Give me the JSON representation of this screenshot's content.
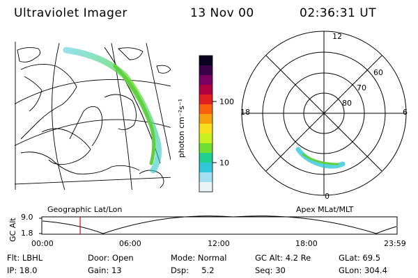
{
  "header": {
    "instrument": "Ultraviolet Imager",
    "date": "13 Nov 00",
    "time": "02:36:31 UT"
  },
  "geo_panel": {
    "caption": "Geographic Lat/Lon"
  },
  "polar_panel": {
    "caption": "Apex MLat/MLT",
    "mlt_labels": {
      "top": "12",
      "left": "18",
      "right": "6",
      "bottom": "0"
    },
    "lat_labels": [
      "60",
      "70",
      "80"
    ]
  },
  "colorbar": {
    "unit_label": "photon cm⁻²s⁻¹",
    "ticks": [
      "100",
      "10"
    ],
    "colors": [
      "#0a0020",
      "#3a0048",
      "#7a0060",
      "#b00040",
      "#e02020",
      "#f86010",
      "#f8a010",
      "#f8e020",
      "#c8f020",
      "#70e030",
      "#20d090",
      "#30c8d8",
      "#a0e0f0",
      "#e8f4f8"
    ]
  },
  "alt_plot": {
    "ylabel": "GC Alt",
    "ymax": "9.0",
    "ymin": "1.8",
    "x_ticks": [
      "00:00",
      "06:00",
      "12:00",
      "18:00",
      "23:59"
    ],
    "current_time_fraction": 0.108
  },
  "status": {
    "filter": "Flt: LBHL",
    "door": "Door: Open",
    "mode": "Mode: Normal",
    "gc_alt": "GC Alt: 4.2 Re",
    "glat": "GLat:  69.5",
    "ip": "IP: 18.0",
    "gain": "Gain: 13",
    "dsp": "Dsp:     5.2",
    "seq": "Seq: 30",
    "glon": "GLon: 304.4"
  },
  "accent_colors": {
    "marker": "#d01010",
    "curve": "#000000"
  }
}
